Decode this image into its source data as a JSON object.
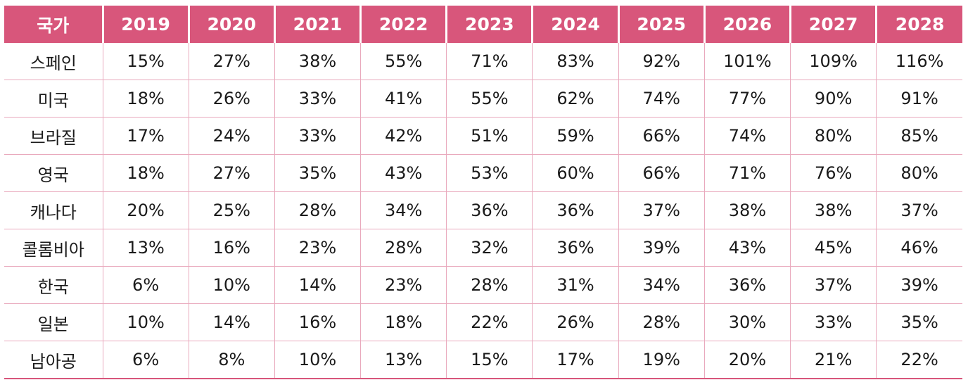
{
  "chart_data": {
    "type": "table",
    "columns": [
      "국가",
      "2019",
      "2020",
      "2021",
      "2022",
      "2023",
      "2024",
      "2025",
      "2026",
      "2027",
      "2028"
    ],
    "rows": [
      [
        "스페인",
        "15%",
        "27%",
        "38%",
        "55%",
        "71%",
        "83%",
        "92%",
        "101%",
        "109%",
        "116%"
      ],
      [
        "미국",
        "18%",
        "26%",
        "33%",
        "41%",
        "55%",
        "62%",
        "74%",
        "77%",
        "90%",
        "91%"
      ],
      [
        "브라질",
        "17%",
        "24%",
        "33%",
        "42%",
        "51%",
        "59%",
        "66%",
        "74%",
        "80%",
        "85%"
      ],
      [
        "영국",
        "18%",
        "27%",
        "35%",
        "43%",
        "53%",
        "60%",
        "66%",
        "71%",
        "76%",
        "80%"
      ],
      [
        "캐나다",
        "20%",
        "25%",
        "28%",
        "34%",
        "36%",
        "36%",
        "37%",
        "38%",
        "38%",
        "37%"
      ],
      [
        "콜롬비아",
        "13%",
        "16%",
        "23%",
        "28%",
        "32%",
        "36%",
        "39%",
        "43%",
        "45%",
        "46%"
      ],
      [
        "한국",
        "6%",
        "10%",
        "14%",
        "23%",
        "28%",
        "31%",
        "34%",
        "36%",
        "37%",
        "39%"
      ],
      [
        "일본",
        "10%",
        "14%",
        "16%",
        "18%",
        "22%",
        "26%",
        "28%",
        "30%",
        "33%",
        "35%"
      ],
      [
        "남아공",
        "6%",
        "8%",
        "10%",
        "13%",
        "15%",
        "17%",
        "19%",
        "20%",
        "21%",
        "22%"
      ]
    ],
    "header_color": "#d8567b",
    "border_color": "#e9a9bd"
  }
}
